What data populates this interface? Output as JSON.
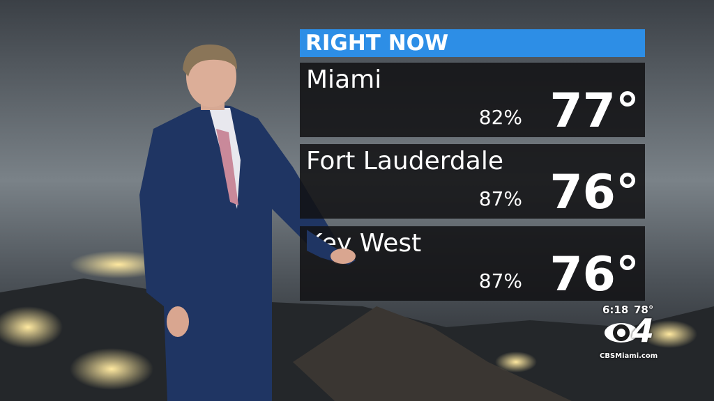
{
  "header": {
    "title": "RIGHT NOW"
  },
  "cities": [
    {
      "name": "Miami",
      "humidity": "82%",
      "temperature": "77°"
    },
    {
      "name": "Fort Lauderdale",
      "humidity": "87%",
      "temperature": "76°"
    },
    {
      "name": "Key West",
      "humidity": "87%",
      "temperature": "76°"
    }
  ],
  "bug": {
    "time": "6:18",
    "temperature": "78°",
    "channel": "4",
    "website": "CBSMiami.com"
  }
}
